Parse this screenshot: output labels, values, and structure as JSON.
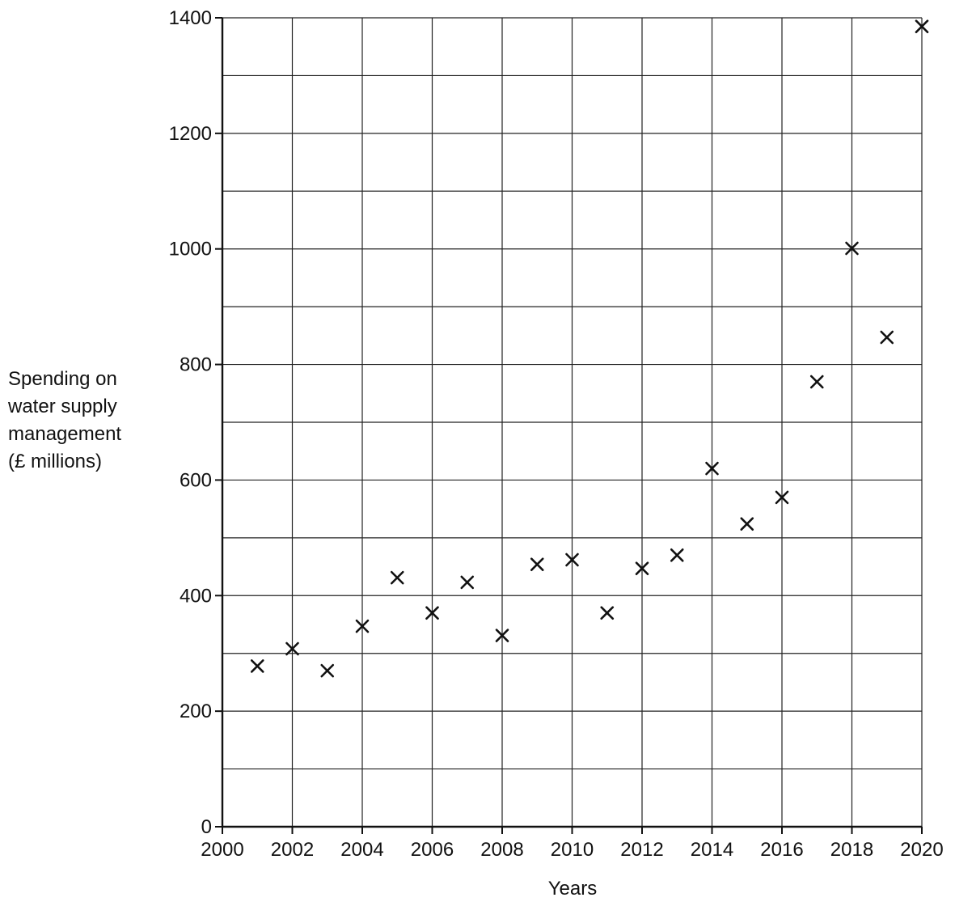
{
  "chart_data": {
    "type": "scatter",
    "title": "",
    "xlabel": "Years",
    "ylabel_lines": [
      "Spending on",
      "water supply",
      "management",
      "(£ millions)"
    ],
    "xlim": [
      2000,
      2020
    ],
    "ylim": [
      0,
      1400
    ],
    "x_ticks": [
      2000,
      2002,
      2004,
      2006,
      2008,
      2010,
      2012,
      2014,
      2016,
      2018,
      2020
    ],
    "y_ticks": [
      0,
      200,
      400,
      600,
      800,
      1000,
      1200,
      1400
    ],
    "grid": true,
    "grid_x_step": 2,
    "grid_y_step": 100,
    "marker": "x",
    "series": [
      {
        "points": [
          {
            "x": 2001,
            "y": 278
          },
          {
            "x": 2002,
            "y": 308
          },
          {
            "x": 2003,
            "y": 270
          },
          {
            "x": 2004,
            "y": 347
          },
          {
            "x": 2005,
            "y": 431
          },
          {
            "x": 2006,
            "y": 370
          },
          {
            "x": 2007,
            "y": 423
          },
          {
            "x": 2008,
            "y": 331
          },
          {
            "x": 2009,
            "y": 454
          },
          {
            "x": 2010,
            "y": 462
          },
          {
            "x": 2011,
            "y": 370
          },
          {
            "x": 2012,
            "y": 447
          },
          {
            "x": 2013,
            "y": 470
          },
          {
            "x": 2014,
            "y": 620
          },
          {
            "x": 2015,
            "y": 524
          },
          {
            "x": 2016,
            "y": 570
          },
          {
            "x": 2017,
            "y": 770
          },
          {
            "x": 2018,
            "y": 1001
          },
          {
            "x": 2019,
            "y": 847
          },
          {
            "x": 2020,
            "y": 1385
          }
        ]
      }
    ],
    "colors": {
      "ink": "#111111",
      "grid": "#222222"
    }
  }
}
